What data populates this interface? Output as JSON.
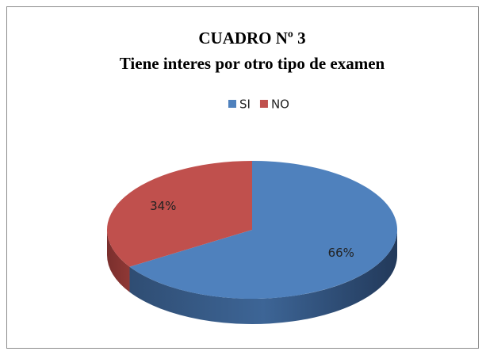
{
  "chart_data": {
    "type": "pie",
    "title": "CUADRO Nº 3",
    "subtitle": "Tiene interes por otro tipo de examen",
    "categories": [
      "SI",
      "NO"
    ],
    "values": [
      66,
      34
    ],
    "value_labels": [
      "66%",
      "34%"
    ],
    "colors": [
      "#4f81bd",
      "#c0504d"
    ],
    "legend": "top"
  }
}
